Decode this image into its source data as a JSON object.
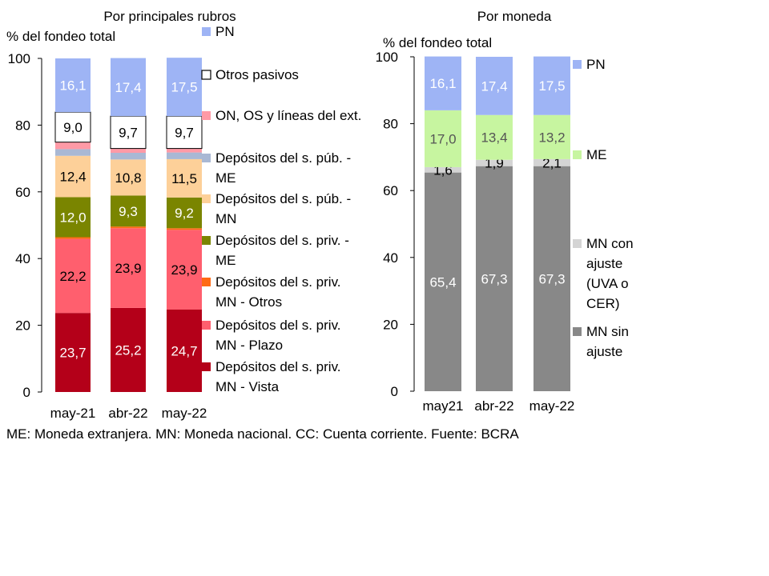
{
  "footnote": "ME: Moneda extranjera. MN: Moneda nacional. CC: Cuenta corriente. Fuente: BCRA",
  "chart_data": [
    {
      "type": "bar",
      "stacked": true,
      "title": "Por principales rubros",
      "ylabel": "% del fondeo total",
      "ylim": [
        0,
        100
      ],
      "yticks": [
        0,
        20,
        40,
        60,
        80,
        100
      ],
      "categories": [
        "may-21",
        "abr-22",
        "may-22"
      ],
      "legend_position": "right",
      "series": [
        {
          "name": "Depósitos del s. priv. MN - Vista",
          "values": [
            23.7,
            25.2,
            24.7
          ],
          "labels": [
            "23,7",
            "25,2",
            "24,7"
          ],
          "color": "#b40019",
          "label_color": "#ffffff",
          "legend_lines": [
            "Depósitos del s. priv.",
            "MN - Vista"
          ]
        },
        {
          "name": "Depósitos del s. priv. MN - Plazo",
          "values": [
            22.2,
            23.9,
            23.9
          ],
          "labels": [
            "22,2",
            "23,9",
            "23,9"
          ],
          "color": "#ff5f6e",
          "label_color": "#000000",
          "legend_lines": [
            "Depósitos del s. priv.",
            "MN - Plazo"
          ]
        },
        {
          "name": "Depósitos del s. priv. MN - Otros",
          "values": [
            0.5,
            0.5,
            0.5
          ],
          "labels": [
            "",
            "",
            ""
          ],
          "color": "#ff6a14",
          "label_color": "#000000",
          "legend_lines": [
            "Depósitos del s. priv.",
            "MN - Otros"
          ]
        },
        {
          "name": "Depósitos del s. priv. - ME",
          "values": [
            12.0,
            9.3,
            9.2
          ],
          "labels": [
            "12,0",
            "9,3",
            "9,2"
          ],
          "color": "#7a8500",
          "label_color": "#ffffff",
          "legend_lines": [
            "Depósitos del s. priv. -",
            "ME"
          ]
        },
        {
          "name": "Depósitos del s. púb. - MN",
          "values": [
            12.4,
            10.8,
            11.5
          ],
          "labels": [
            "12,4",
            "10,8",
            "11,5"
          ],
          "color": "#fdd099",
          "label_color": "#000000",
          "legend_lines": [
            "Depósitos del s. púb. -",
            "MN"
          ]
        },
        {
          "name": "Depósitos del s. púb. - ME",
          "values": [
            2.0,
            2.0,
            2.0
          ],
          "labels": [
            "",
            "",
            ""
          ],
          "color": "#a9b8d4",
          "label_color": "#000000",
          "legend_lines": [
            "Depósitos del s. púb. -",
            "ME"
          ]
        },
        {
          "name": "ON, OS y líneas del ext.",
          "values": [
            2.1,
            1.3,
            1.2
          ],
          "labels": [
            "",
            "",
            ""
          ],
          "color": "#ff9aa6",
          "label_color": "#000000",
          "legend_lines": [
            "ON, OS y líneas del ext."
          ]
        },
        {
          "name": "Otros pasivos",
          "values": [
            9.0,
            9.7,
            9.7
          ],
          "labels": [
            "9,0",
            "9,7",
            "9,7"
          ],
          "color": "#ffffff",
          "label_color": "#000000",
          "legend_lines": [
            "Otros pasivos"
          ]
        },
        {
          "name": "PN",
          "values": [
            16.1,
            17.4,
            17.5
          ],
          "labels": [
            "16,1",
            "17,4",
            "17,5"
          ],
          "color": "#9eb4f5",
          "label_color": "#ffffff",
          "legend_lines": [
            "PN"
          ]
        }
      ]
    },
    {
      "type": "bar",
      "stacked": true,
      "title": "Por moneda",
      "ylabel": "% del fondeo total",
      "ylim": [
        0,
        100
      ],
      "yticks": [
        0,
        20,
        40,
        60,
        80,
        100
      ],
      "categories": [
        "may21",
        "abr-22",
        "may-22"
      ],
      "legend_position": "right",
      "series": [
        {
          "name": "MN sin ajuste",
          "values": [
            65.4,
            67.3,
            67.3
          ],
          "labels": [
            "65,4",
            "67,3",
            "67,3"
          ],
          "color": "#888888",
          "label_color": "#ffffff",
          "legend_lines": [
            "MN sin",
            "ajuste"
          ]
        },
        {
          "name": "MN con ajuste (UVA o CER)",
          "values": [
            1.6,
            1.9,
            2.1
          ],
          "labels": [
            "1,6",
            "1,9",
            "2,1"
          ],
          "color": "#d4d4d4",
          "label_color": "#000000",
          "legend_lines": [
            "MN con",
            "ajuste",
            "(UVA o",
            "CER)"
          ]
        },
        {
          "name": "ME",
          "values": [
            17.0,
            13.4,
            13.2
          ],
          "labels": [
            "17,0",
            "13,4",
            "13,2"
          ],
          "color": "#c7f5a0",
          "label_color": "#555555",
          "legend_lines": [
            "ME"
          ]
        },
        {
          "name": "PN",
          "values": [
            16.1,
            17.4,
            17.5
          ],
          "labels": [
            "16,1",
            "17,4",
            "17,5"
          ],
          "color": "#9eb4f5",
          "label_color": "#ffffff",
          "legend_lines": [
            "PN"
          ]
        }
      ]
    }
  ]
}
